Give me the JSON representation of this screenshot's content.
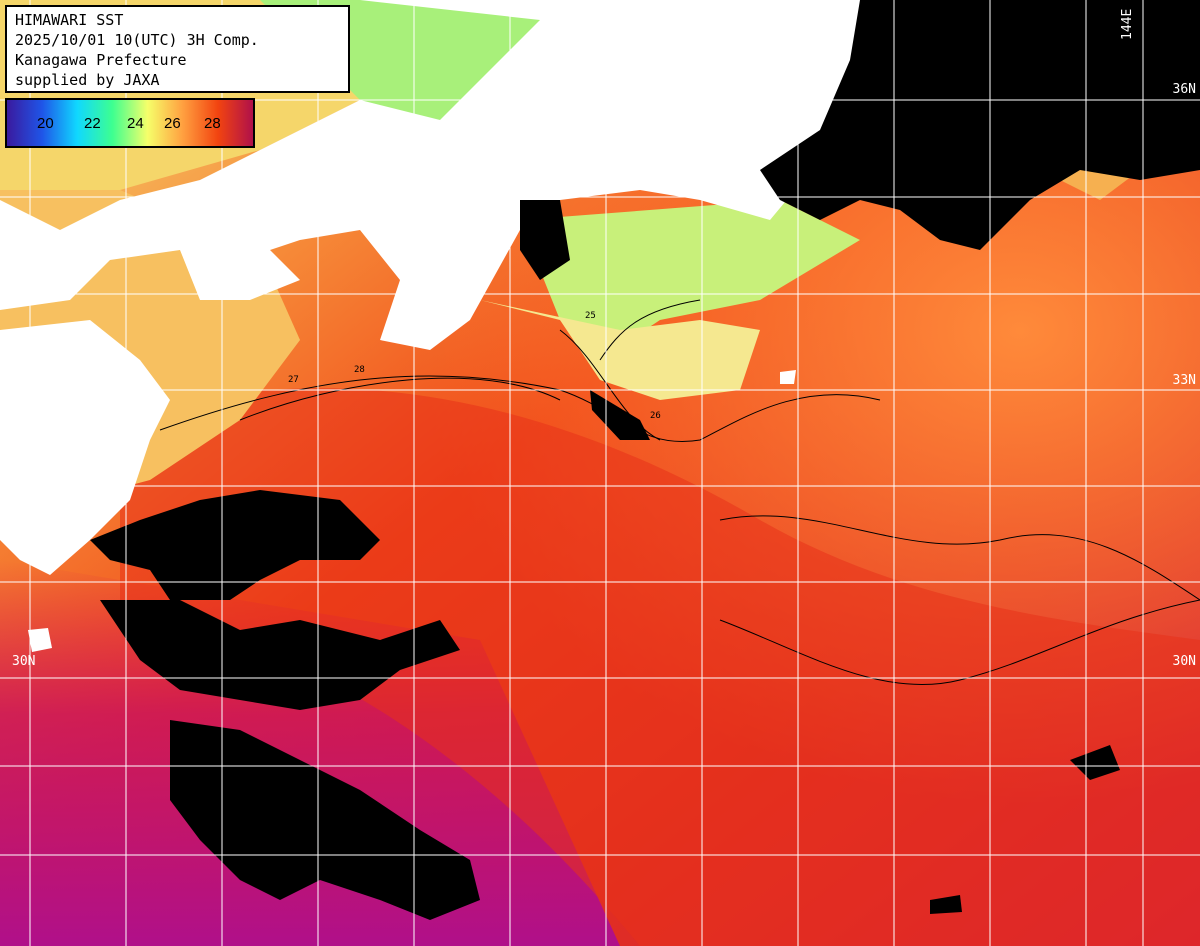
{
  "header": {
    "line1": "HIMAWARI SST",
    "line2": "2025/10/01 10(UTC) 3H Comp.",
    "line3": "Kanagawa Prefecture",
    "line4": "supplied by JAXA"
  },
  "legend": {
    "ticks": [
      "20",
      "22",
      "24",
      "26",
      "28"
    ],
    "colors": [
      "#3a1a9e",
      "#1f55e8",
      "#10d8ff",
      "#3dff90",
      "#f6ff6a",
      "#ffa040",
      "#f24410",
      "#b0104a"
    ]
  },
  "grid_labels": {
    "lon_top": "144E",
    "lat_36": "36N",
    "lat_33": "33N",
    "lat_30_left": "30N",
    "lat_30_right": "30N"
  },
  "contour_labels": [
    "25",
    "26",
    "27",
    "28"
  ],
  "colors": {
    "land": "#ffffff",
    "cloud": "#000000",
    "gridline": "#ffffff"
  }
}
